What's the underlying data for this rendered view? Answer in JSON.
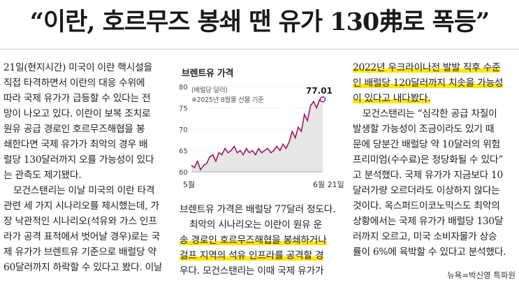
{
  "headline": "“이란, 호르무즈 봉쇄 땐 유가 130弗로 폭등”",
  "col1": {
    "lines": [
      "21일(현지시간) 미국이 이란 핵시설을",
      "직접 타격하면서 이란의 대응 수위에",
      "따라 국제 유가가 급등할 수 있다는 전",
      "망이 나오고 있다. 이란이 보복 조치로",
      "원유 공급 경로인 호르무즈해협을 봉",
      "쇄한다면 국제 유가가 최악의 경우 배",
      "럴당 130달러까지 오를 가능성이 있다",
      "는 관측도 제기됐다.",
      "모건스탠리는 이날 미국의 이란 타격",
      "관련 세 가지 시나리오를 제시했는데, 가",
      "장 낙관적인 시나리오(석유와 가스 인프",
      "라가 공격 표적에서 벗어날 경우)로는 국",
      "제 유가가 브렌트유 기준으로 배럴당 약",
      "60달러까지 하락할 수 있다고 봤다. 이날"
    ]
  },
  "chart": {
    "title": "브렌트유 가격",
    "unit": "(배럴당 달러)",
    "note": "※2025년 8월물 선물 기준",
    "y_ticks": [
      "80",
      "75",
      "70",
      "65",
      "60"
    ],
    "x_start": "5월",
    "x_end": "6월 21일",
    "last_value_label": "77.01"
  },
  "chart_data": {
    "type": "area",
    "title": "브렌트유 가격",
    "ylabel": "(배럴당 달러)",
    "ylim": [
      60,
      80
    ],
    "x_labels": [
      "5월",
      "6월 21일"
    ],
    "values": [
      61.5,
      61.0,
      62.5,
      60.5,
      61.5,
      62.0,
      63.5,
      64.0,
      62.5,
      64.5,
      64.0,
      65.5,
      64.5,
      65.0,
      66.0,
      64.5,
      65.0,
      64.0,
      65.5,
      64.5,
      65.0,
      64.0,
      65.5,
      64.5,
      65.0,
      65.5,
      64.5,
      65.0,
      66.0,
      65.0,
      66.5,
      65.5,
      67.0,
      69.5,
      68.0,
      70.5,
      69.5,
      73.5,
      72.0,
      75.5,
      76.5,
      75.0,
      77.0,
      77.01
    ],
    "last_value": 77.01
  },
  "center_text": {
    "lines": [
      "브렌트유 가격은 배럴당 77달러 정도다.",
      "최악의 시나리오는 이란이 원유 운",
      "송 경로인 호르무즈해협을 봉쇄하거나",
      "걸프 지역의 석유 인프라를 공격할 경",
      "우다. 모건스탠리는 이때 국제 유가가"
    ]
  },
  "col3": {
    "lines": [
      "2022년 우크라이나전 발발 직후 수준",
      "인 배럴당 120달러까지 치솟을 가능성",
      "이 있다고 내다봤다.",
      "모건스탠리는 “심각한 공급 차질이",
      "발생할 가능성이 조금이라도 있기 때",
      "문에 당분간 배럴당 약 10달러의 위험",
      "프리미엄(수수료)은 정당화될 수 있다”",
      "고 분석했다. 국제 유가가 지금보다 10",
      "달러가량 오르더라도 이상하지 않다는",
      "것이다. 옥스퍼드이코노믹스도 최악의",
      "상황에서는 국제 유가가 배럴당 130달",
      "러까지 오르고, 미국 소비자물가 상승",
      "률이 6%에 육박할 수 있다고 분석했다."
    ]
  },
  "byline": "뉴욕=박신영 특파원",
  "colors": {
    "highlight": "#ffe600",
    "chart_line": "#9c1c5a",
    "chart_fill": "#e6e6e6",
    "text": "#222222"
  }
}
